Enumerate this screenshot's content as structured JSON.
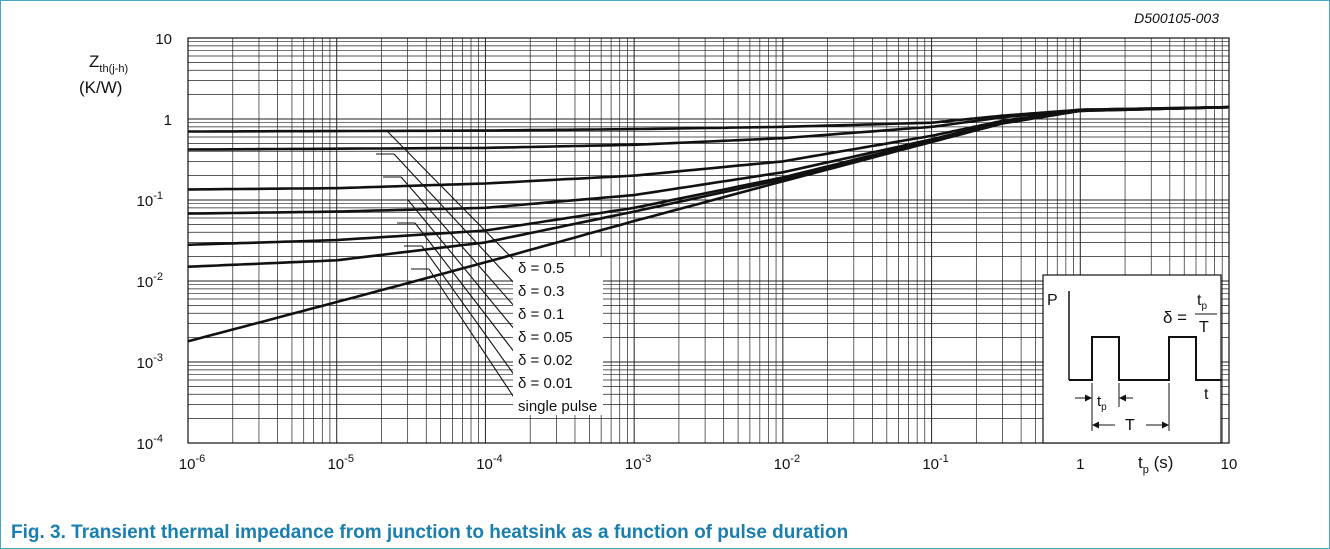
{
  "figure": {
    "code": "D500105-003",
    "caption": "Fig. 3.   Transient thermal impedance from junction to heatsink as a function of pulse duration"
  },
  "chart_data": {
    "type": "line",
    "x_scale": "log",
    "y_scale": "log",
    "xlim": [
      1e-06,
      10
    ],
    "ylim": [
      0.0001,
      10
    ],
    "grid": true,
    "xlabel": {
      "main": "t",
      "sub": "p",
      "unit": " (s)"
    },
    "ylabel": {
      "main": "Z",
      "sub": "th(j-h)",
      "unit": "(K/W)"
    },
    "x_ticks": [
      {
        "base": "10",
        "exp": "-6"
      },
      {
        "base": "10",
        "exp": "-5"
      },
      {
        "base": "10",
        "exp": "-4"
      },
      {
        "base": "10",
        "exp": "-3"
      },
      {
        "base": "10",
        "exp": "-2"
      },
      {
        "base": "10",
        "exp": "-1"
      },
      {
        "base": "1",
        "exp": ""
      },
      {
        "base": "10",
        "exp": ""
      }
    ],
    "y_ticks": [
      {
        "base": "10",
        "exp": ""
      },
      {
        "base": "1",
        "exp": ""
      },
      {
        "base": "10",
        "exp": "-1"
      },
      {
        "base": "10",
        "exp": "-2"
      },
      {
        "base": "10",
        "exp": "-3"
      },
      {
        "base": "10",
        "exp": "-4"
      }
    ],
    "series": [
      {
        "name": "δ = 0.5",
        "points": [
          [
            1e-06,
            0.7
          ],
          [
            0.0001,
            0.72
          ],
          [
            0.001,
            0.75
          ],
          [
            0.01,
            0.8
          ],
          [
            0.1,
            0.9
          ],
          [
            0.3,
            1.1
          ],
          [
            1,
            1.3
          ],
          [
            10,
            1.4
          ]
        ]
      },
      {
        "name": "δ = 0.3",
        "points": [
          [
            1e-06,
            0.42
          ],
          [
            0.0001,
            0.44
          ],
          [
            0.001,
            0.48
          ],
          [
            0.01,
            0.58
          ],
          [
            0.1,
            0.8
          ],
          [
            0.3,
            1.05
          ],
          [
            1,
            1.3
          ],
          [
            10,
            1.4
          ]
        ]
      },
      {
        "name": "δ = 0.1",
        "points": [
          [
            1e-06,
            0.135
          ],
          [
            1e-05,
            0.14
          ],
          [
            0.0001,
            0.16
          ],
          [
            0.001,
            0.2
          ],
          [
            0.01,
            0.3
          ],
          [
            0.1,
            0.62
          ],
          [
            0.3,
            0.95
          ],
          [
            1,
            1.28
          ],
          [
            10,
            1.4
          ]
        ]
      },
      {
        "name": "δ = 0.05",
        "points": [
          [
            1e-06,
            0.068
          ],
          [
            1e-05,
            0.072
          ],
          [
            0.0001,
            0.08
          ],
          [
            0.001,
            0.115
          ],
          [
            0.01,
            0.22
          ],
          [
            0.1,
            0.56
          ],
          [
            0.3,
            0.92
          ],
          [
            1,
            1.27
          ],
          [
            10,
            1.4
          ]
        ]
      },
      {
        "name": "δ = 0.02",
        "points": [
          [
            1e-06,
            0.028
          ],
          [
            1e-05,
            0.032
          ],
          [
            0.0001,
            0.042
          ],
          [
            0.001,
            0.08
          ],
          [
            0.01,
            0.19
          ],
          [
            0.1,
            0.54
          ],
          [
            0.3,
            0.9
          ],
          [
            1,
            1.27
          ],
          [
            10,
            1.4
          ]
        ]
      },
      {
        "name": "δ = 0.01",
        "points": [
          [
            1e-06,
            0.015
          ],
          [
            1e-05,
            0.018
          ],
          [
            0.0001,
            0.03
          ],
          [
            0.001,
            0.072
          ],
          [
            0.01,
            0.18
          ],
          [
            0.1,
            0.53
          ],
          [
            0.3,
            0.9
          ],
          [
            1,
            1.26
          ],
          [
            10,
            1.4
          ]
        ]
      },
      {
        "name": "single pulse",
        "points": [
          [
            1e-06,
            0.0018
          ],
          [
            1e-05,
            0.0055
          ],
          [
            0.0001,
            0.017
          ],
          [
            0.001,
            0.055
          ],
          [
            0.01,
            0.17
          ],
          [
            0.1,
            0.52
          ],
          [
            0.3,
            0.88
          ],
          [
            1,
            1.26
          ],
          [
            10,
            1.4
          ]
        ]
      }
    ]
  },
  "inset": {
    "axis_y": "P",
    "axis_x": "t",
    "tp": {
      "main": "t",
      "sub": "p"
    },
    "period": "T",
    "formula": {
      "lhs": "δ = ",
      "num_main": "t",
      "num_sub": "p",
      "den": "T"
    }
  }
}
